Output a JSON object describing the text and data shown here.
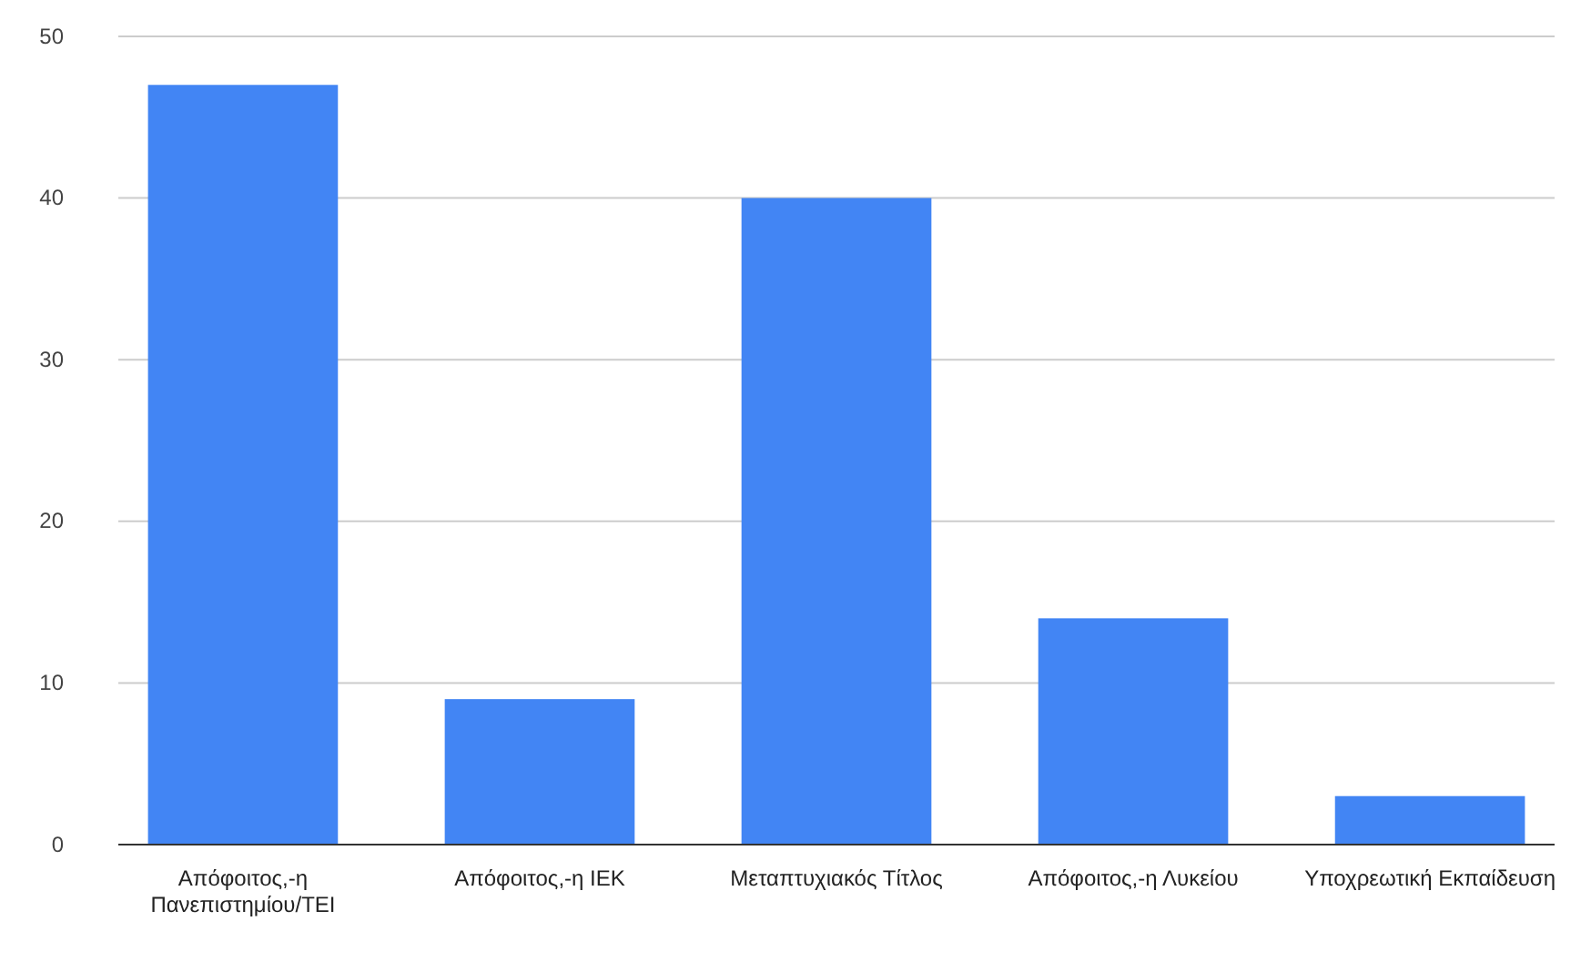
{
  "chart_data": {
    "type": "bar",
    "categories": [
      "Απόφοιτος,-η Πανεπιστημίου/ΤΕΙ",
      "Απόφοιτος,-η ΙΕΚ",
      "Μεταπτυχιακός Τίτλος",
      "Απόφοιτος,-η Λυκείου",
      "Υποχρεωτική Εκπαίδευση"
    ],
    "values": [
      47,
      9,
      40,
      14,
      3
    ],
    "color": "#4285f4",
    "ylim": [
      0,
      50
    ],
    "yticks": [
      0,
      10,
      20,
      30,
      40,
      50
    ],
    "grid": "y"
  }
}
